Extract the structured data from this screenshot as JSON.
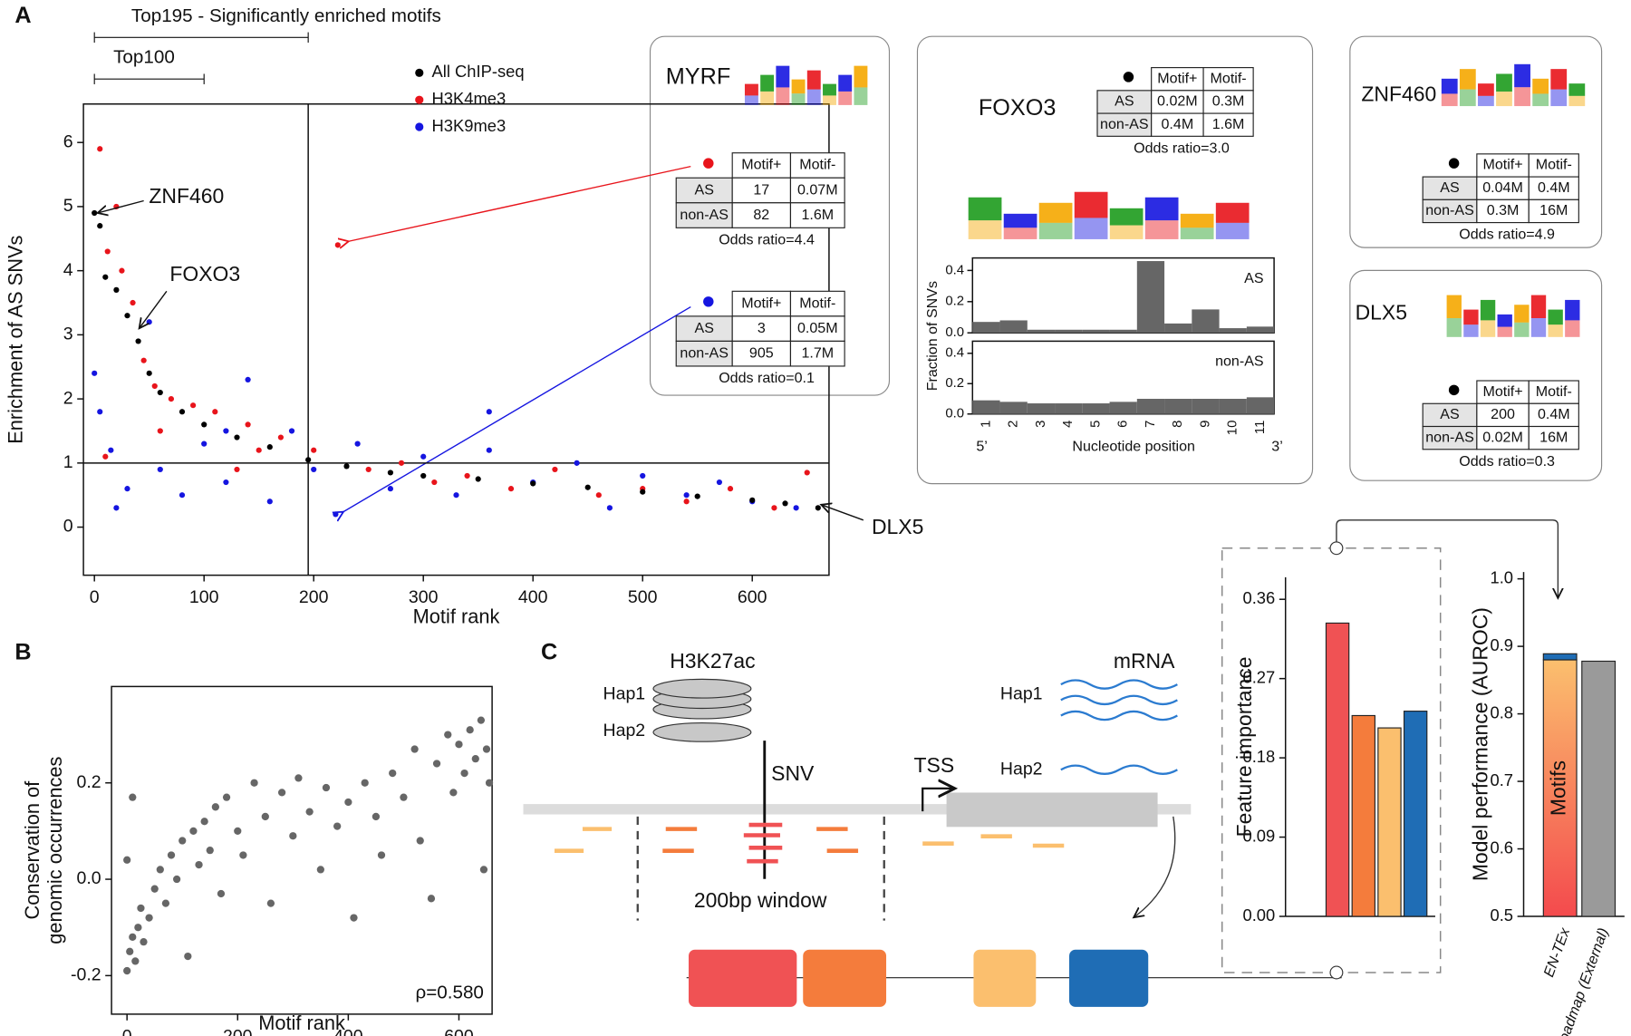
{
  "panels": [
    "A",
    "B",
    "C"
  ],
  "chart_data": [
    {
      "type": "scatter",
      "xlabel": "Motif rank",
      "ylabel": "Enrichment of AS SNVs",
      "xlim": [
        -10,
        670
      ],
      "ylim": [
        -0.75,
        6.6
      ],
      "xticks": [
        0,
        100,
        200,
        300,
        400,
        500,
        600
      ],
      "yticks": [
        0,
        1,
        2,
        3,
        4,
        5,
        6
      ],
      "hline": 1,
      "vline": 195,
      "series": [
        {
          "name": "All ChIP-seq",
          "color": "#000000",
          "x": [
            0,
            5,
            10,
            20,
            30,
            40,
            50,
            60,
            80,
            100,
            130,
            160,
            195,
            230,
            270,
            300,
            350,
            400,
            450,
            500,
            550,
            600,
            630,
            660
          ],
          "values": [
            4.9,
            4.7,
            3.9,
            3.7,
            3.3,
            2.9,
            2.4,
            2.1,
            1.8,
            1.6,
            1.4,
            1.25,
            1.05,
            0.95,
            0.85,
            0.8,
            0.75,
            0.68,
            0.62,
            0.55,
            0.48,
            0.42,
            0.37,
            0.3
          ]
        },
        {
          "name": "H3K4me3",
          "color": "#e8141b",
          "x": [
            5,
            20,
            12,
            25,
            35,
            45,
            55,
            70,
            90,
            110,
            140,
            150,
            170,
            200,
            222,
            250,
            280,
            310,
            340,
            380,
            420,
            460,
            500,
            540,
            580,
            620,
            650,
            10,
            60,
            130
          ],
          "values": [
            5.9,
            5.0,
            4.3,
            4.0,
            3.5,
            2.6,
            2.2,
            2.0,
            1.9,
            1.8,
            1.6,
            1.2,
            1.4,
            1.2,
            4.4,
            0.9,
            1.0,
            0.7,
            0.8,
            0.6,
            0.9,
            0.5,
            0.6,
            0.4,
            0.6,
            0.3,
            0.85,
            1.1,
            1.5,
            0.9
          ]
        },
        {
          "name": "H3K9me3",
          "color": "#1515e0",
          "x": [
            0,
            5,
            15,
            30,
            50,
            60,
            80,
            100,
            120,
            140,
            160,
            180,
            200,
            220,
            240,
            270,
            300,
            330,
            360,
            400,
            440,
            470,
            500,
            540,
            570,
            600,
            640,
            360,
            120,
            20
          ],
          "values": [
            2.4,
            1.8,
            1.2,
            0.6,
            3.2,
            0.9,
            0.5,
            1.3,
            0.7,
            2.3,
            0.4,
            1.5,
            0.9,
            0.2,
            1.3,
            0.6,
            1.1,
            0.5,
            1.2,
            0.7,
            1.0,
            0.3,
            0.8,
            0.5,
            0.7,
            0.4,
            0.3,
            1.8,
            1.5,
            0.3
          ]
        }
      ],
      "annotations": [
        {
          "text": "ZNF460",
          "x": 0,
          "y": 4.9
        },
        {
          "text": "FOXO3",
          "x": 38,
          "y": 3.1
        },
        {
          "text": "DLX5",
          "x": 660,
          "y": 0.35
        }
      ],
      "brackets": [
        {
          "text": "Top195 - Significantly enriched motifs",
          "to": 195
        },
        {
          "text": "Top100",
          "to": 100
        }
      ]
    },
    {
      "type": "scatter",
      "xlabel": "Motif rank",
      "ylabel": [
        "Conservation of",
        "genomic occurrences"
      ],
      "xlim": [
        -28,
        660
      ],
      "ylim": [
        -0.28,
        0.4
      ],
      "xticks": [
        0,
        200,
        400,
        600
      ],
      "yticks": [
        -0.2,
        {
          "value": 0,
          "label": "0.0"
        },
        0.2
      ],
      "annotation": "ρ=0.580",
      "series": [
        {
          "color": "#666666",
          "x": [
            0,
            5,
            10,
            15,
            20,
            25,
            30,
            40,
            50,
            60,
            70,
            80,
            90,
            100,
            110,
            120,
            130,
            140,
            150,
            160,
            170,
            180,
            200,
            210,
            230,
            250,
            260,
            280,
            300,
            310,
            330,
            350,
            360,
            380,
            400,
            410,
            430,
            450,
            460,
            480,
            500,
            520,
            530,
            550,
            560,
            580,
            590,
            600,
            610,
            620,
            630,
            640,
            650,
            655,
            645,
            10,
            0
          ],
          "values": [
            -0.19,
            -0.15,
            -0.12,
            -0.17,
            -0.1,
            -0.06,
            -0.13,
            -0.08,
            -0.02,
            0.02,
            -0.05,
            0.05,
            0.0,
            0.08,
            -0.16,
            0.1,
            0.03,
            0.12,
            0.06,
            0.15,
            -0.03,
            0.17,
            0.1,
            0.05,
            0.2,
            0.13,
            -0.05,
            0.18,
            0.09,
            0.21,
            0.14,
            0.02,
            0.19,
            0.11,
            0.16,
            -0.08,
            0.2,
            0.13,
            0.05,
            0.22,
            0.17,
            0.27,
            0.08,
            -0.04,
            0.24,
            0.3,
            0.18,
            0.28,
            0.22,
            0.31,
            0.25,
            0.33,
            0.27,
            0.2,
            0.02,
            0.17,
            0.04
          ]
        }
      ]
    },
    {
      "type": "bar",
      "ylabel": "Feature importance",
      "categories": [
        null,
        null,
        null,
        null
      ],
      "values": [
        0.333,
        0.228,
        0.214,
        0.233
      ],
      "colors": [
        "#f05254",
        "#f47c3c",
        "#fbbf6e",
        "#1f6db5"
      ],
      "ylim": [
        0,
        0.385
      ],
      "yticks": [
        {
          "value": 0,
          "label": "0.00"
        },
        0.09,
        0.18,
        0.27,
        0.36
      ]
    },
    {
      "type": "stacked-bar",
      "ylabel": "Model performance (AUROC)",
      "categories": [
        "EN-TEx",
        "Roadmap (External)"
      ],
      "ylim": [
        0.5,
        1.01
      ],
      "yticks": [
        0.5,
        0.6,
        0.7,
        0.8,
        0.9,
        {
          "value": 1,
          "label": "1.0"
        }
      ],
      "series": [
        {
          "name": "Motifs",
          "color": [
            "#fbbf6e",
            "#f44a4d"
          ],
          "values": [
            0.88,
            null
          ]
        },
        {
          "color": "#1f6db5",
          "values": [
            0.009,
            null
          ]
        },
        {
          "color": "#9a9a9a",
          "values": [
            null,
            0.878
          ]
        }
      ]
    },
    {
      "type": "bar",
      "ylabel": "Fraction of SNVs",
      "xlabel": "Nucleotide position",
      "ends": [
        "5’",
        "3’"
      ],
      "categories": [
        "1",
        "2",
        "3",
        "4",
        "5",
        "6",
        "7",
        "8",
        "9",
        "10",
        "11"
      ],
      "ylim": [
        0,
        0.48
      ],
      "yticks": [
        {
          "value": 0,
          "label": "0.0"
        },
        0.2,
        0.4
      ],
      "series": [
        {
          "name": "AS",
          "color": "#666666",
          "values": [
            0.07,
            0.08,
            0.02,
            0.02,
            0.02,
            0.02,
            0.46,
            0.06,
            0.15,
            0.03,
            0.04
          ]
        },
        {
          "name": "non-AS",
          "color": "#666666",
          "values": [
            0.09,
            0.08,
            0.07,
            0.07,
            0.07,
            0.08,
            0.1,
            0.1,
            0.1,
            0.1,
            0.11
          ]
        }
      ]
    }
  ],
  "insets": [
    {
      "title": "MYRF",
      "tables": [
        {
          "color": "#e8141b",
          "header": [
            "Motif+",
            "Motif-"
          ],
          "rows": [
            [
              "AS",
              "17",
              "0.07M"
            ],
            [
              "non-AS",
              "82",
              "1.6M"
            ]
          ],
          "note": "Odds ratio=4.4"
        },
        {
          "color": "#1515e0",
          "header": [
            "Motif+",
            "Motif-"
          ],
          "rows": [
            [
              "AS",
              "3",
              "0.05M"
            ],
            [
              "non-AS",
              "905",
              "1.7M"
            ]
          ],
          "note": "Odds ratio=0.1"
        }
      ]
    },
    {
      "title": "FOXO3",
      "tables": [
        {
          "color": "#000000",
          "header": [
            "Motif+",
            "Motif-"
          ],
          "rows": [
            [
              "AS",
              "0.02M",
              "0.3M"
            ],
            [
              "non-AS",
              "0.4M",
              "1.6M"
            ]
          ],
          "note": "Odds ratio=3.0"
        }
      ]
    },
    {
      "title": "ZNF460",
      "tables": [
        {
          "color": "#000000",
          "header": [
            "Motif+",
            "Motif-"
          ],
          "rows": [
            [
              "AS",
              "0.04M",
              "0.4M"
            ],
            [
              "non-AS",
              "0.3M",
              "16M"
            ]
          ],
          "note": "Odds ratio=4.9"
        }
      ]
    },
    {
      "title": "DLX5",
      "tables": [
        {
          "color": "#000000",
          "header": [
            "Motif+",
            "Motif-"
          ],
          "rows": [
            [
              "AS",
              "200",
              "0.4M"
            ],
            [
              "non-AS",
              "0.02M",
              "16M"
            ]
          ],
          "note": "Odds ratio=0.3"
        }
      ]
    }
  ],
  "diagram": {
    "mark": "H3K27ac",
    "hap1_mark": "Hap1",
    "hap2_mark": "Hap2",
    "snv": "SNV",
    "window": "200bp window",
    "tss": "TSS",
    "mrna": "mRNA",
    "hap1_rna": "Hap1",
    "hap2_rna": "Hap2"
  }
}
